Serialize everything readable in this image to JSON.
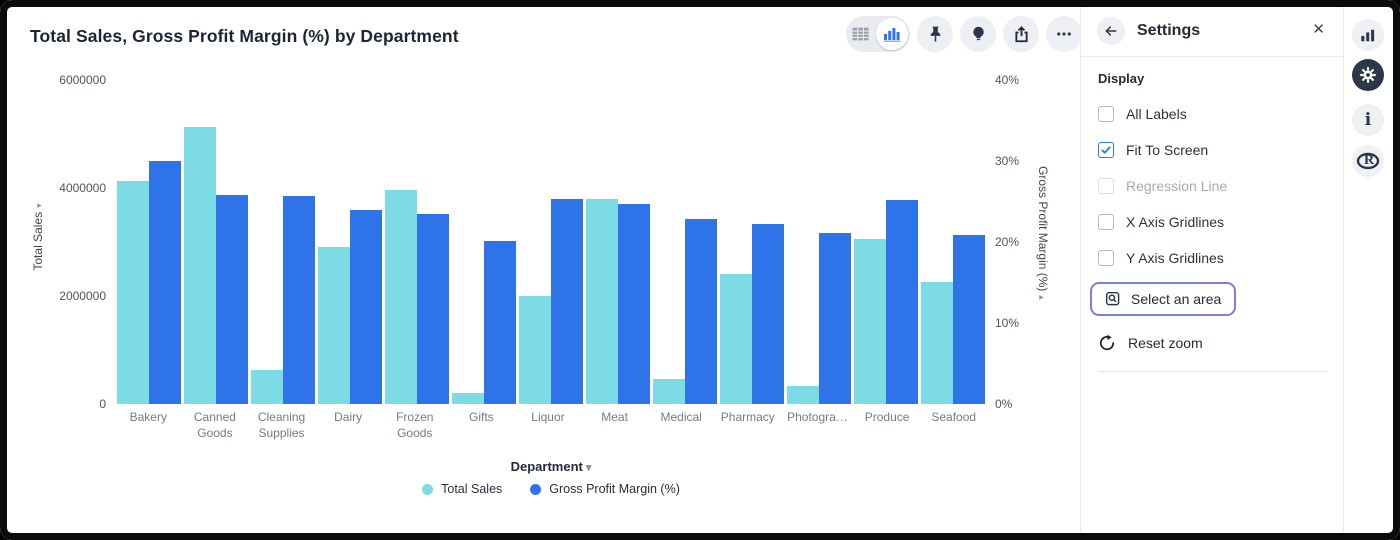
{
  "header": {
    "title": "Total Sales, Gross Profit Margin (%) by Department",
    "toolbar": [
      "table-view-toggle",
      "chart-view-toggle",
      "pin",
      "explore",
      "export",
      "more"
    ]
  },
  "chart_data": {
    "type": "bar",
    "title": "Total Sales, Gross Profit Margin (%) by Department",
    "categories": [
      "Bakery",
      "Canned Goods",
      "Cleaning Supplies",
      "Dairy",
      "Frozen Goods",
      "Gifts",
      "Liquor",
      "Meat",
      "Medical",
      "Pharmacy",
      "Photogra…",
      "Produce",
      "Seafood"
    ],
    "series": [
      {
        "name": "Total Sales",
        "axis": "left",
        "color": "#7ddbe6",
        "values": [
          4130000,
          5130000,
          630000,
          2900000,
          3960000,
          200000,
          2000000,
          3800000,
          460000,
          2410000,
          330000,
          3060000,
          2260000
        ]
      },
      {
        "name": "Gross Profit Margin (%)",
        "axis": "right",
        "color": "#2e74e8",
        "values": [
          30.0,
          25.8,
          25.7,
          24.0,
          23.4,
          20.1,
          25.3,
          24.7,
          22.8,
          22.2,
          21.1,
          25.2,
          20.9
        ]
      }
    ],
    "left_axis": {
      "label": "Total Sales",
      "ticks": [
        "0",
        "2000000",
        "4000000",
        "6000000"
      ],
      "max": 6000000
    },
    "right_axis": {
      "label": "Gross Profit Margin (%)",
      "ticks": [
        "0%",
        "10%",
        "20%",
        "30%",
        "40%"
      ],
      "max": 40
    },
    "xlabel": "Department",
    "legend_position": "bottom",
    "grid": false
  },
  "settings": {
    "title": "Settings",
    "section": "Display",
    "checkboxes": [
      {
        "label": "All Labels",
        "checked": false,
        "disabled": false
      },
      {
        "label": "Fit To Screen",
        "checked": true,
        "disabled": false
      },
      {
        "label": "Regression Line",
        "checked": false,
        "disabled": true
      },
      {
        "label": "X Axis Gridlines",
        "checked": false,
        "disabled": false
      },
      {
        "label": "Y Axis Gridlines",
        "checked": false,
        "disabled": false
      }
    ],
    "select_area_label": "Select an area",
    "reset_zoom_label": "Reset zoom"
  },
  "rail": {
    "icons": [
      "bar-chart",
      "settings-gear",
      "info",
      "r-analytics"
    ]
  },
  "colors": {
    "sales_bar": "#7ddbe6",
    "gpm_bar": "#2e74e8",
    "accent_blue": "#2979f2",
    "select_outline": "#7b80de",
    "title_text": "#1b2534"
  }
}
